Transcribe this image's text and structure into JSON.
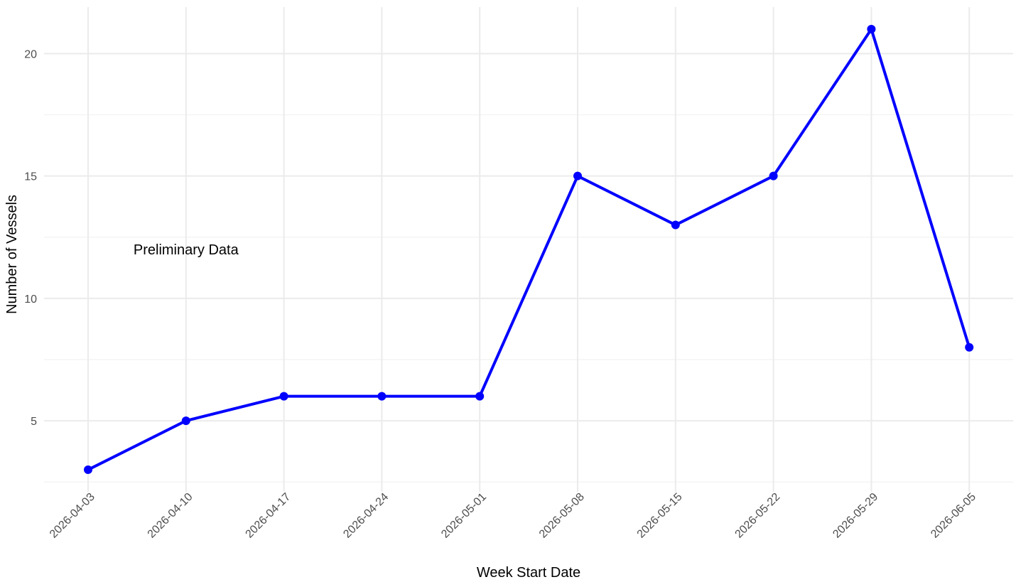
{
  "chart_data": {
    "type": "line",
    "title": "",
    "xlabel": "Week Start Date",
    "ylabel": "Number of Vessels",
    "x": [
      "2026-04-03",
      "2026-04-10",
      "2026-04-17",
      "2026-04-24",
      "2026-05-01",
      "2026-05-08",
      "2026-05-15",
      "2026-05-22",
      "2026-05-29",
      "2026-06-05"
    ],
    "series": [
      {
        "values": [
          3,
          5,
          6,
          6,
          6,
          15,
          13,
          15,
          21,
          8
        ],
        "color": "#0000ff"
      }
    ],
    "ylim": [
      2.1,
      21.9
    ],
    "yticks": [
      5,
      10,
      15,
      20
    ],
    "ytick_labels": [
      "5",
      "10",
      "15",
      "20"
    ],
    "x_tick_rotation": "45 degrees",
    "grid": true,
    "legend": "none",
    "annotations": [
      {
        "text": "Preliminary Data",
        "x": "2026-04-10",
        "y": 12
      }
    ],
    "colors": {
      "line": "#0000ff",
      "grid": "#ebebeb",
      "tick_text": "#4d4d4d",
      "title_text": "#000000"
    }
  }
}
